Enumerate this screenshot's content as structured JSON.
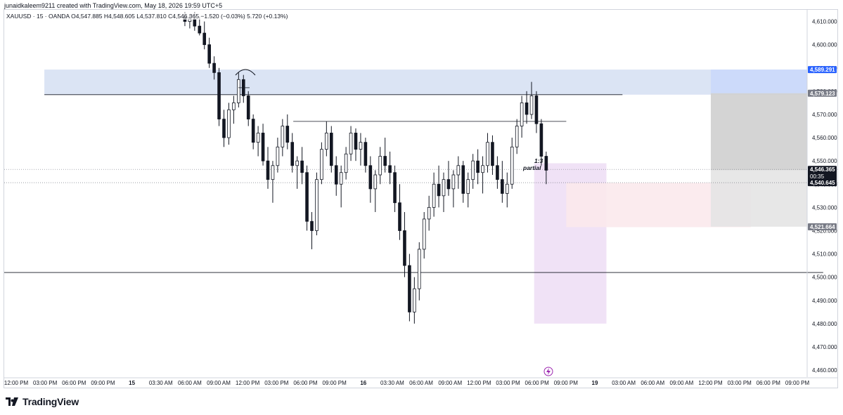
{
  "header": {
    "attribution": "junaidkaleem9211 created with TradingView.com, May 18, 2026 19:59 UTC+5"
  },
  "symbol": {
    "legend": "XAUUSD · 15 · OANDA  O4,547.885  H4,548.605  L4,537.810  C4,546.365  −1.520 (−0.03%)  5.720 (+0.13%)"
  },
  "brand": {
    "name": "TradingView",
    "icon": "tradingview-logo-icon"
  },
  "colors": {
    "candle": "#131722",
    "supply_zone": "#d7e1f3",
    "demand_zone": "#eedff5",
    "target_zone": "#c9d8fa",
    "stop_zone": "#cfcfcf",
    "stop_zone_light": "#e4e4e4",
    "pink_zone": "#fbe9ec",
    "blue_label": "#2962ff",
    "gray_label": "#787b86",
    "dark_label": "#131722",
    "alert_icon": "#9c27b0"
  },
  "annotations": {
    "ratio": "1:3",
    "partial": "partial"
  },
  "chart_data": {
    "type": "candlestick",
    "symbol": "XAUUSD",
    "timeframe": "15",
    "source": "OANDA",
    "ylim": [
      4457,
      4615
    ],
    "y_ticks": [
      4460,
      4470,
      4480,
      4490,
      4500,
      4510,
      4520,
      4530,
      4540,
      4550,
      4560,
      4570,
      4580,
      4590,
      4600,
      4610
    ],
    "x_tick_labels": [
      "12:00 PM",
      "03:00 PM",
      "06:00 PM",
      "09:00 PM",
      "15",
      "03:30 AM",
      "06:00 AM",
      "09:00 AM",
      "12:00 PM",
      "03:00 PM",
      "06:00 PM",
      "09:00 PM",
      "16",
      "03:30 AM",
      "06:00 AM",
      "09:00 AM",
      "12:00 PM",
      "03:00 PM",
      "06:00 PM",
      "09:00 PM",
      "19",
      "03:00 AM",
      "06:00 AM",
      "09:00 AM",
      "12:00 PM",
      "03:00 PM",
      "06:00 PM",
      "09:00 PM"
    ],
    "price_labels": [
      {
        "value": 4589.291,
        "text": "4,589.291",
        "style": "blue"
      },
      {
        "value": 4579.123,
        "text": "4,579.123",
        "style": "gray"
      },
      {
        "value": 4546.365,
        "text": "4,546.365",
        "style": "dark",
        "sub": "00:35"
      },
      {
        "value": 4540.645,
        "text": "4,540.645",
        "style": "dark"
      },
      {
        "value": 4521.664,
        "text": "4,521.664",
        "style": "gray"
      }
    ],
    "horizontal_lines": [
      {
        "name": "supply-top-line",
        "y": 4578.5,
        "x_from": 5,
        "x_to": 77
      },
      {
        "name": "mid-resistance-line",
        "y": 4567,
        "x_from": 36,
        "x_to": 70
      },
      {
        "name": "support-line",
        "y": 4502,
        "x_from": 0,
        "x_to": 102
      },
      {
        "name": "current-price-line",
        "y": 4546.365,
        "x_from": 0,
        "x_to": 136
      },
      {
        "name": "entry-price-line",
        "y": 4540.645,
        "x_from": 0,
        "x_to": 136
      }
    ],
    "zones": [
      {
        "name": "supply-zone",
        "y": [
          4578.5,
          4589.3
        ],
        "x": [
          5,
          100
        ],
        "style": "supply"
      },
      {
        "name": "demand-zone",
        "y": [
          4480,
          4549
        ],
        "x": [
          66,
          75
        ],
        "style": "demand"
      },
      {
        "name": "pink-zone",
        "y": [
          4521.5,
          4540.5
        ],
        "x": [
          70,
          93
        ],
        "style": "pink"
      },
      {
        "name": "target-zone",
        "y": [
          4579.1,
          4589.3
        ],
        "x": [
          88,
          100
        ],
        "style": "target"
      },
      {
        "name": "stop-zone",
        "y": [
          4521.7,
          4579.1
        ],
        "x": [
          88,
          100
        ],
        "style": "stop"
      }
    ],
    "candles": [
      {
        "o": 4612,
        "h": 4614,
        "l": 4608,
        "c": 4610
      },
      {
        "o": 4610,
        "h": 4613,
        "l": 4607,
        "c": 4611
      },
      {
        "o": 4611,
        "h": 4614,
        "l": 4606,
        "c": 4608
      },
      {
        "o": 4608,
        "h": 4612,
        "l": 4604,
        "c": 4605
      },
      {
        "o": 4605,
        "h": 4610,
        "l": 4598,
        "c": 4600
      },
      {
        "o": 4600,
        "h": 4603,
        "l": 4590,
        "c": 4592
      },
      {
        "o": 4592,
        "h": 4595,
        "l": 4585,
        "c": 4588
      },
      {
        "o": 4588,
        "h": 4590,
        "l": 4565,
        "c": 4568
      },
      {
        "o": 4568,
        "h": 4572,
        "l": 4556,
        "c": 4560
      },
      {
        "o": 4560,
        "h": 4575,
        "l": 4557,
        "c": 4572
      },
      {
        "o": 4572,
        "h": 4578,
        "l": 4566,
        "c": 4575
      },
      {
        "o": 4575,
        "h": 4588,
        "l": 4573,
        "c": 4585
      },
      {
        "o": 4585,
        "h": 4587,
        "l": 4575,
        "c": 4578
      },
      {
        "o": 4578,
        "h": 4580,
        "l": 4565,
        "c": 4568
      },
      {
        "o": 4568,
        "h": 4570,
        "l": 4555,
        "c": 4558
      },
      {
        "o": 4558,
        "h": 4565,
        "l": 4552,
        "c": 4562
      },
      {
        "o": 4562,
        "h": 4566,
        "l": 4548,
        "c": 4550
      },
      {
        "o": 4550,
        "h": 4556,
        "l": 4538,
        "c": 4542
      },
      {
        "o": 4542,
        "h": 4550,
        "l": 4532,
        "c": 4548
      },
      {
        "o": 4548,
        "h": 4560,
        "l": 4545,
        "c": 4556
      },
      {
        "o": 4556,
        "h": 4568,
        "l": 4552,
        "c": 4565
      },
      {
        "o": 4565,
        "h": 4570,
        "l": 4555,
        "c": 4558
      },
      {
        "o": 4558,
        "h": 4562,
        "l": 4545,
        "c": 4548
      },
      {
        "o": 4548,
        "h": 4552,
        "l": 4538,
        "c": 4550
      },
      {
        "o": 4550,
        "h": 4556,
        "l": 4540,
        "c": 4545
      },
      {
        "o": 4545,
        "h": 4548,
        "l": 4520,
        "c": 4524
      },
      {
        "o": 4524,
        "h": 4528,
        "l": 4512,
        "c": 4520
      },
      {
        "o": 4520,
        "h": 4545,
        "l": 4518,
        "c": 4542
      },
      {
        "o": 4542,
        "h": 4558,
        "l": 4540,
        "c": 4555
      },
      {
        "o": 4555,
        "h": 4567,
        "l": 4552,
        "c": 4562
      },
      {
        "o": 4562,
        "h": 4565,
        "l": 4545,
        "c": 4548
      },
      {
        "o": 4548,
        "h": 4552,
        "l": 4535,
        "c": 4540
      },
      {
        "o": 4540,
        "h": 4548,
        "l": 4530,
        "c": 4545
      },
      {
        "o": 4545,
        "h": 4556,
        "l": 4542,
        "c": 4553
      },
      {
        "o": 4553,
        "h": 4565,
        "l": 4550,
        "c": 4562
      },
      {
        "o": 4562,
        "h": 4564,
        "l": 4550,
        "c": 4555
      },
      {
        "o": 4555,
        "h": 4562,
        "l": 4548,
        "c": 4558
      },
      {
        "o": 4558,
        "h": 4560,
        "l": 4545,
        "c": 4548
      },
      {
        "o": 4548,
        "h": 4552,
        "l": 4532,
        "c": 4538
      },
      {
        "o": 4538,
        "h": 4546,
        "l": 4528,
        "c": 4544
      },
      {
        "o": 4544,
        "h": 4556,
        "l": 4540,
        "c": 4552
      },
      {
        "o": 4552,
        "h": 4560,
        "l": 4545,
        "c": 4548
      },
      {
        "o": 4548,
        "h": 4554,
        "l": 4540,
        "c": 4545
      },
      {
        "o": 4545,
        "h": 4548,
        "l": 4528,
        "c": 4532
      },
      {
        "o": 4532,
        "h": 4540,
        "l": 4516,
        "c": 4520
      },
      {
        "o": 4520,
        "h": 4528,
        "l": 4500,
        "c": 4505
      },
      {
        "o": 4505,
        "h": 4510,
        "l": 4481,
        "c": 4485
      },
      {
        "o": 4485,
        "h": 4500,
        "l": 4480,
        "c": 4495
      },
      {
        "o": 4495,
        "h": 4515,
        "l": 4490,
        "c": 4512
      },
      {
        "o": 4512,
        "h": 4528,
        "l": 4508,
        "c": 4525
      },
      {
        "o": 4525,
        "h": 4535,
        "l": 4520,
        "c": 4530
      },
      {
        "o": 4530,
        "h": 4545,
        "l": 4526,
        "c": 4540
      },
      {
        "o": 4540,
        "h": 4548,
        "l": 4530,
        "c": 4535
      },
      {
        "o": 4535,
        "h": 4545,
        "l": 4528,
        "c": 4542
      },
      {
        "o": 4542,
        "h": 4550,
        "l": 4535,
        "c": 4538
      },
      {
        "o": 4538,
        "h": 4546,
        "l": 4530,
        "c": 4544
      },
      {
        "o": 4544,
        "h": 4552,
        "l": 4538,
        "c": 4548
      },
      {
        "o": 4548,
        "h": 4550,
        "l": 4532,
        "c": 4536
      },
      {
        "o": 4536,
        "h": 4545,
        "l": 4530,
        "c": 4542
      },
      {
        "o": 4542,
        "h": 4553,
        "l": 4538,
        "c": 4550
      },
      {
        "o": 4550,
        "h": 4555,
        "l": 4540,
        "c": 4545
      },
      {
        "o": 4545,
        "h": 4552,
        "l": 4536,
        "c": 4548
      },
      {
        "o": 4548,
        "h": 4562,
        "l": 4545,
        "c": 4558
      },
      {
        "o": 4558,
        "h": 4561,
        "l": 4544,
        "c": 4548
      },
      {
        "o": 4548,
        "h": 4552,
        "l": 4538,
        "c": 4542
      },
      {
        "o": 4542,
        "h": 4550,
        "l": 4532,
        "c": 4536
      },
      {
        "o": 4536,
        "h": 4545,
        "l": 4530,
        "c": 4540
      },
      {
        "o": 4540,
        "h": 4560,
        "l": 4538,
        "c": 4556
      },
      {
        "o": 4556,
        "h": 4568,
        "l": 4553,
        "c": 4565
      },
      {
        "o": 4565,
        "h": 4578,
        "l": 4560,
        "c": 4575
      },
      {
        "o": 4575,
        "h": 4580,
        "l": 4566,
        "c": 4570
      },
      {
        "o": 4570,
        "h": 4584,
        "l": 4568,
        "c": 4578
      },
      {
        "o": 4578,
        "h": 4580,
        "l": 4562,
        "c": 4566
      },
      {
        "o": 4566,
        "h": 4568,
        "l": 4548,
        "c": 4552
      },
      {
        "o": 4552,
        "h": 4554,
        "l": 4540,
        "c": 4546
      }
    ]
  }
}
